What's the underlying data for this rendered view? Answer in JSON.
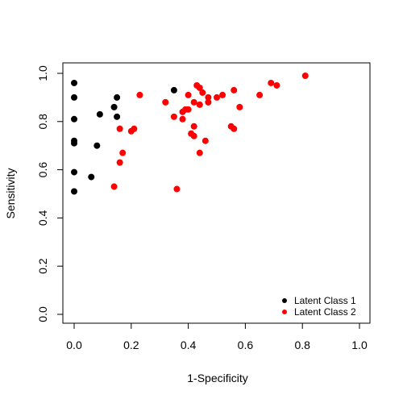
{
  "chart_data": {
    "type": "scatter",
    "title": "",
    "xlabel": "1-Specificity",
    "ylabel": "Sensitivity",
    "xlim": [
      0,
      1
    ],
    "ylim": [
      0,
      1
    ],
    "x_ticks": [
      "0.0",
      "0.2",
      "0.4",
      "0.6",
      "0.8",
      "1.0"
    ],
    "y_ticks": [
      "0.0",
      "0.2",
      "0.4",
      "0.6",
      "0.8",
      "1.0"
    ],
    "grid": false,
    "legend_position": "bottom-right",
    "series": [
      {
        "name": "Latent Class 1",
        "color": "#000000",
        "points": [
          [
            0.0,
            0.96
          ],
          [
            0.0,
            0.9
          ],
          [
            0.0,
            0.81
          ],
          [
            0.0,
            0.72
          ],
          [
            0.0,
            0.71
          ],
          [
            0.0,
            0.59
          ],
          [
            0.0,
            0.51
          ],
          [
            0.06,
            0.57
          ],
          [
            0.08,
            0.7
          ],
          [
            0.09,
            0.83
          ],
          [
            0.14,
            0.86
          ],
          [
            0.15,
            0.9
          ],
          [
            0.15,
            0.82
          ],
          [
            0.35,
            0.93
          ]
        ]
      },
      {
        "name": "Latent Class 2",
        "color": "#ff0000",
        "points": [
          [
            0.14,
            0.53
          ],
          [
            0.16,
            0.63
          ],
          [
            0.16,
            0.77
          ],
          [
            0.17,
            0.67
          ],
          [
            0.2,
            0.76
          ],
          [
            0.21,
            0.77
          ],
          [
            0.23,
            0.91
          ],
          [
            0.32,
            0.88
          ],
          [
            0.35,
            0.82
          ],
          [
            0.36,
            0.52
          ],
          [
            0.38,
            0.81
          ],
          [
            0.38,
            0.84
          ],
          [
            0.39,
            0.85
          ],
          [
            0.4,
            0.91
          ],
          [
            0.4,
            0.85
          ],
          [
            0.41,
            0.75
          ],
          [
            0.42,
            0.74
          ],
          [
            0.42,
            0.78
          ],
          [
            0.42,
            0.88
          ],
          [
            0.43,
            0.95
          ],
          [
            0.44,
            0.87
          ],
          [
            0.44,
            0.94
          ],
          [
            0.44,
            0.67
          ],
          [
            0.45,
            0.92
          ],
          [
            0.46,
            0.72
          ],
          [
            0.47,
            0.88
          ],
          [
            0.47,
            0.9
          ],
          [
            0.5,
            0.9
          ],
          [
            0.52,
            0.91
          ],
          [
            0.55,
            0.78
          ],
          [
            0.56,
            0.77
          ],
          [
            0.56,
            0.93
          ],
          [
            0.58,
            0.86
          ],
          [
            0.65,
            0.91
          ],
          [
            0.69,
            0.96
          ],
          [
            0.71,
            0.95
          ],
          [
            0.81,
            0.99
          ]
        ]
      }
    ]
  }
}
